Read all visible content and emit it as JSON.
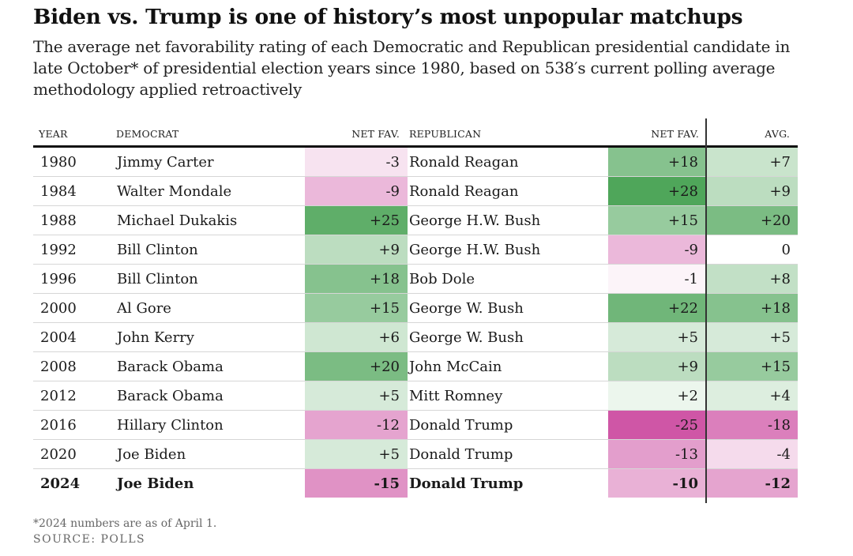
{
  "title": "Biden vs. Trump is one of history’s most unpopular matchups",
  "subtitle": "The average net favorability rating of each Democratic and Republican presidential candidate in late October* of presidential election years since 1980, based on 538′s current polling average methodology applied retroactively",
  "colors": {
    "positive_max": "#4fa65a",
    "negative_max": "#cf56a6",
    "neutral": "#ffffff"
  },
  "chart_data": {
    "type": "table",
    "title": "Biden vs. Trump is one of history’s most unpopular matchups",
    "columns": [
      "YEAR",
      "DEMOCRAT",
      "NET FAV.",
      "REPUBLICAN",
      "NET FAV.",
      "AVG."
    ],
    "color_scale": {
      "min": -25,
      "max": 28,
      "negative_color": "#cf56a6",
      "positive_color": "#4fa65a"
    },
    "rows": [
      {
        "year": "1980",
        "democrat": "Jimmy Carter",
        "dem_net": -3,
        "republican": "Ronald Reagan",
        "rep_net": 18,
        "avg": 7,
        "bold": false
      },
      {
        "year": "1984",
        "democrat": "Walter Mondale",
        "dem_net": -9,
        "republican": "Ronald Reagan",
        "rep_net": 28,
        "avg": 9,
        "bold": false
      },
      {
        "year": "1988",
        "democrat": "Michael Dukakis",
        "dem_net": 25,
        "republican": "George H.W. Bush",
        "rep_net": 15,
        "avg": 20,
        "bold": false
      },
      {
        "year": "1992",
        "democrat": "Bill Clinton",
        "dem_net": 9,
        "republican": "George H.W. Bush",
        "rep_net": -9,
        "avg": 0,
        "bold": false
      },
      {
        "year": "1996",
        "democrat": "Bill Clinton",
        "dem_net": 18,
        "republican": "Bob Dole",
        "rep_net": -1,
        "avg": 8,
        "bold": false
      },
      {
        "year": "2000",
        "democrat": "Al Gore",
        "dem_net": 15,
        "republican": "George W. Bush",
        "rep_net": 22,
        "avg": 18,
        "bold": false
      },
      {
        "year": "2004",
        "democrat": "John Kerry",
        "dem_net": 6,
        "republican": "George W. Bush",
        "rep_net": 5,
        "avg": 5,
        "bold": false
      },
      {
        "year": "2008",
        "democrat": "Barack Obama",
        "dem_net": 20,
        "republican": "John McCain",
        "rep_net": 9,
        "avg": 15,
        "bold": false
      },
      {
        "year": "2012",
        "democrat": "Barack Obama",
        "dem_net": 5,
        "republican": "Mitt Romney",
        "rep_net": 2,
        "avg": 4,
        "bold": false
      },
      {
        "year": "2016",
        "democrat": "Hillary Clinton",
        "dem_net": -12,
        "republican": "Donald Trump",
        "rep_net": -25,
        "avg": -18,
        "bold": false
      },
      {
        "year": "2020",
        "democrat": "Joe Biden",
        "dem_net": 5,
        "republican": "Donald Trump",
        "rep_net": -13,
        "avg": -4,
        "bold": false
      },
      {
        "year": "2024",
        "democrat": "Joe Biden",
        "dem_net": -15,
        "republican": "Donald Trump",
        "rep_net": -10,
        "avg": -12,
        "bold": true
      }
    ]
  },
  "footnote": "*2024 numbers are as of April 1.",
  "source": "SOURCE: POLLS"
}
